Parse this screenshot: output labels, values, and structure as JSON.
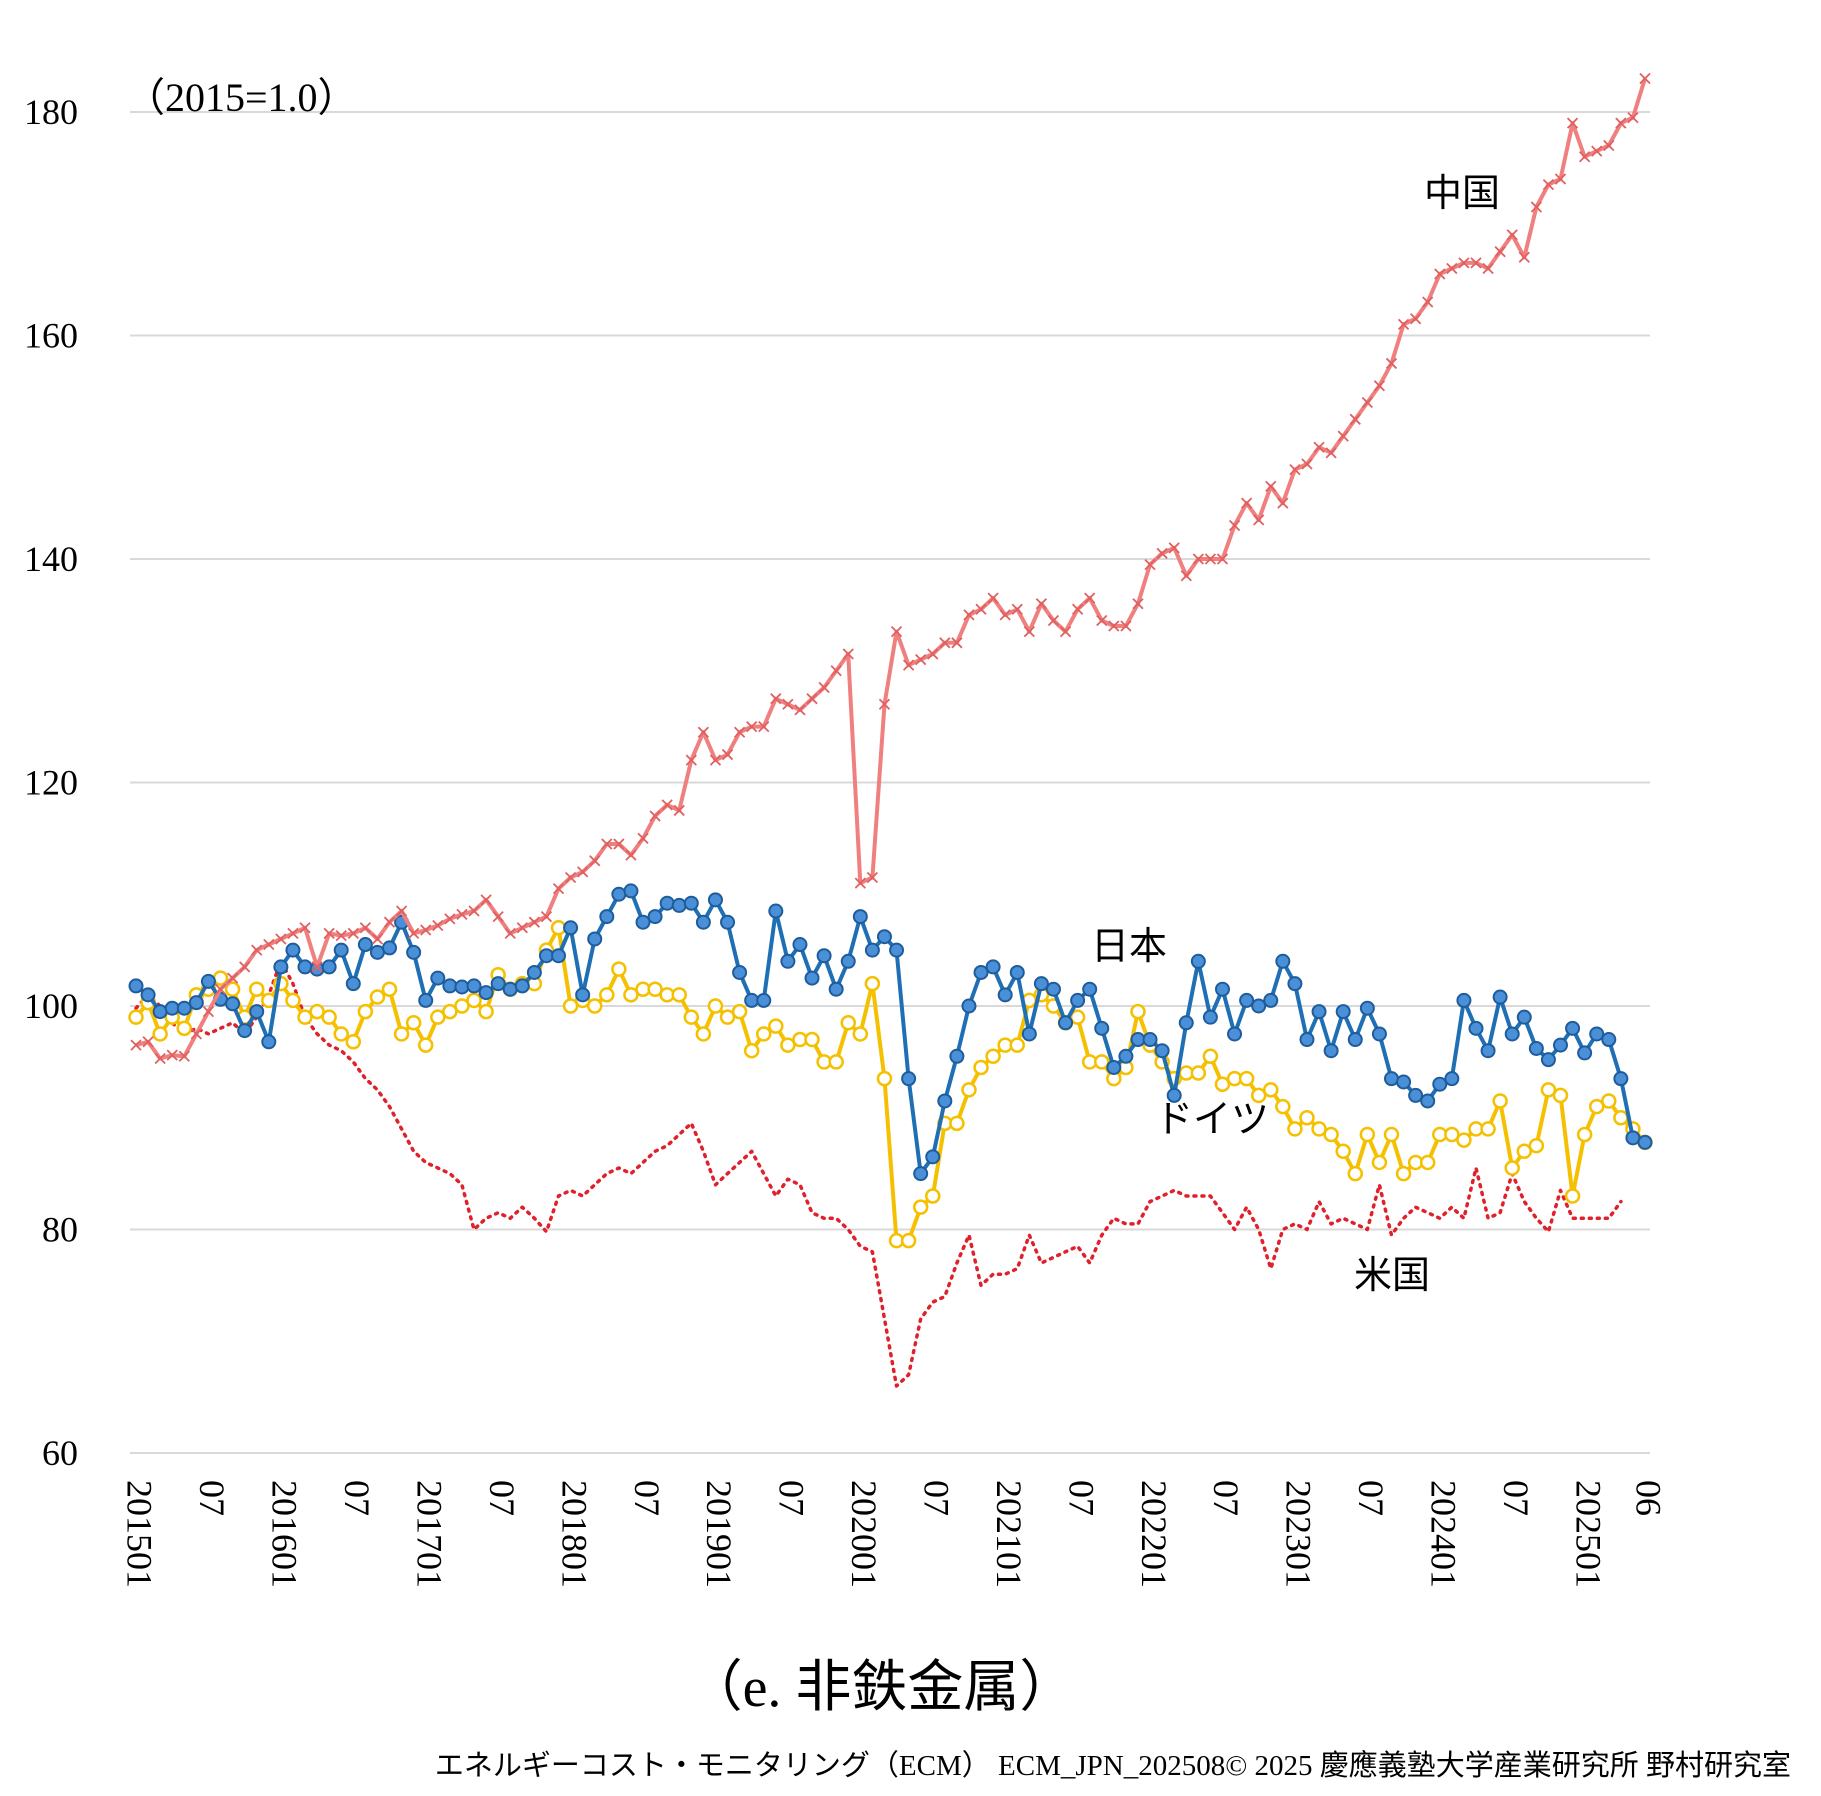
{
  "chart_data": {
    "type": "line",
    "unit_note": "（2015=1.0）",
    "title": "（e. 非鉄金属）",
    "footer": "エネルギーコスト・モニタリング（ECM） ECM_JPN_202508© 2025 慶應義塾大学産業研究所 野村研究室",
    "ylim": [
      60,
      180
    ],
    "yticks": [
      60,
      80,
      100,
      120,
      140,
      160,
      180
    ],
    "grid": true,
    "x_start": "2015-01",
    "x_end": "2025-06",
    "xticks": [
      {
        "month": 0,
        "label": "201501"
      },
      {
        "month": 6,
        "label": "07"
      },
      {
        "month": 12,
        "label": "201601"
      },
      {
        "month": 18,
        "label": "07"
      },
      {
        "month": 24,
        "label": "201701"
      },
      {
        "month": 30,
        "label": "07"
      },
      {
        "month": 36,
        "label": "201801"
      },
      {
        "month": 42,
        "label": "07"
      },
      {
        "month": 48,
        "label": "201901"
      },
      {
        "month": 54,
        "label": "07"
      },
      {
        "month": 60,
        "label": "202001"
      },
      {
        "month": 66,
        "label": "07"
      },
      {
        "month": 72,
        "label": "202101"
      },
      {
        "month": 78,
        "label": "07"
      },
      {
        "month": 84,
        "label": "202201"
      },
      {
        "month": 90,
        "label": "07"
      },
      {
        "month": 96,
        "label": "202301"
      },
      {
        "month": 102,
        "label": "07"
      },
      {
        "month": 108,
        "label": "202401"
      },
      {
        "month": 114,
        "label": "07"
      },
      {
        "month": 120,
        "label": "202501"
      },
      {
        "month": 125,
        "label": "06"
      }
    ],
    "series": [
      {
        "name": "中国",
        "color": "#f08080",
        "marker": "x",
        "style": "solid",
        "values": [
          96.5,
          96.8,
          95.3,
          95.6,
          95.5,
          97.5,
          99.5,
          101.5,
          102.5,
          103.5,
          105,
          105.5,
          106,
          106.5,
          107,
          103.5,
          106.5,
          106.3,
          106.5,
          107,
          106,
          107.5,
          108.5,
          106.5,
          106.8,
          107.2,
          107.8,
          108.2,
          108.5,
          109.5,
          108,
          106.5,
          107,
          107.5,
          108,
          110.5,
          111.5,
          112,
          113,
          114.5,
          114.5,
          113.5,
          115,
          117,
          118,
          117.5,
          122,
          124.5,
          122,
          122.5,
          124.5,
          125,
          125,
          127.5,
          127,
          126.5,
          127.5,
          128.5,
          130,
          131.5,
          111,
          111.5,
          127,
          133.5,
          130.5,
          131,
          131.5,
          132.5,
          132.5,
          135,
          135.5,
          136.5,
          135,
          135.5,
          133.5,
          136,
          134.5,
          133.5,
          135.5,
          136.5,
          134.5,
          134,
          134,
          136,
          139.5,
          140.5,
          141,
          138.5,
          140,
          140,
          140,
          143,
          145,
          143.5,
          146.5,
          145,
          148,
          148.5,
          150,
          149.5,
          151,
          152.5,
          154,
          155.5,
          157.5,
          161,
          161.5,
          163,
          165.5,
          166,
          166.5,
          166.5,
          166,
          167.5,
          169,
          167,
          171.5,
          173.5,
          174,
          179,
          176,
          176.5,
          177,
          179,
          179.5,
          183
        ]
      },
      {
        "name": "日本",
        "color": "#1f6fb5",
        "marker": "filled",
        "style": "solid",
        "values": [
          101.8,
          101,
          99.5,
          99.8,
          99.8,
          100.3,
          102.2,
          100.6,
          100.2,
          97.8,
          99.5,
          96.8,
          103.5,
          105,
          103.5,
          103.3,
          103.5,
          105,
          102,
          105.5,
          104.8,
          105.2,
          107.5,
          104.8,
          100.5,
          102.5,
          101.8,
          101.7,
          101.8,
          101.2,
          102,
          101.5,
          101.8,
          103,
          104.5,
          104.5,
          107,
          101,
          106,
          108,
          110,
          110.3,
          107.5,
          108,
          109.2,
          109,
          109.2,
          107.5,
          109.5,
          107.5,
          103,
          100.5,
          100.5,
          108.5,
          104,
          105.5,
          102.5,
          104.5,
          101.5,
          104,
          108,
          105,
          106.2,
          105,
          93.5,
          85,
          86.5,
          91.5,
          95.5,
          100,
          103,
          103.5,
          101,
          103,
          97.5,
          102,
          101.5,
          98.5,
          100.5,
          101.5,
          98,
          94.5,
          95.5,
          97,
          97,
          96,
          92,
          98.5,
          104,
          99,
          101.5,
          97.5,
          100.5,
          100,
          100.5,
          104,
          102,
          97,
          99.5,
          96,
          99.5,
          97,
          99.8,
          97.5,
          93.5,
          93.2,
          92,
          91.5,
          93,
          93.5,
          100.5,
          98,
          96,
          100.8,
          97.5,
          99,
          96.2,
          95.2,
          96.5,
          98,
          95.8,
          97.5,
          97,
          93.5,
          88.2,
          87.8
        ]
      },
      {
        "name": "ドイツ",
        "color": "#f5c000",
        "marker": "hollow",
        "style": "solid",
        "values": [
          99,
          100.3,
          97.5,
          99,
          98,
          101,
          101.5,
          102.5,
          101.5,
          99,
          101.5,
          100.5,
          102,
          100.5,
          99,
          99.5,
          99,
          97.5,
          96.8,
          99.5,
          100.8,
          101.5,
          97.5,
          98.5,
          96.5,
          99,
          99.5,
          100,
          100.5,
          99.5,
          102.8,
          101.5,
          102,
          102,
          105,
          107,
          100,
          100.5,
          100,
          101,
          103.3,
          101,
          101.5,
          101.5,
          101,
          101,
          99,
          97.5,
          100,
          99,
          99.5,
          96,
          97.5,
          98.2,
          96.5,
          97,
          97,
          95,
          95,
          98.5,
          97.5,
          102,
          93.5,
          79,
          79,
          82,
          83,
          89.5,
          89.5,
          92.5,
          94.5,
          95.5,
          96.5,
          96.5,
          100.5,
          101,
          100,
          98.5,
          99,
          95,
          95,
          93.5,
          94.5,
          99.5,
          96.5,
          95,
          93.5,
          94,
          94,
          95.5,
          93,
          93.5,
          93.5,
          92,
          92.5,
          91,
          89,
          90,
          89,
          88.5,
          87,
          85,
          88.5,
          86,
          88.5,
          85,
          86,
          86,
          88.5,
          88.5,
          88,
          89,
          89,
          91.5,
          85.5,
          87,
          87.5,
          92.5,
          92,
          83,
          88.5,
          91,
          91.5,
          90,
          89,
          87.8
        ]
      },
      {
        "name": "米国",
        "color": "#e0202a",
        "marker": "none",
        "style": "dotted",
        "values": [
          99.8,
          101,
          100,
          98.5,
          97.5,
          98,
          97.5,
          98,
          98.5,
          97.5,
          99,
          101,
          104,
          102,
          99,
          97.5,
          96.5,
          96,
          95,
          93.5,
          92.5,
          91,
          89,
          87,
          86,
          85.5,
          85,
          84,
          80,
          81,
          81.5,
          81,
          82,
          81,
          79.8,
          83,
          83.5,
          83,
          84,
          85,
          85.5,
          85,
          86,
          87,
          87.5,
          88.5,
          89.5,
          87,
          84,
          85,
          86,
          87,
          85,
          83,
          84.5,
          84,
          81.5,
          81,
          81,
          80,
          78.5,
          78,
          72,
          66,
          67,
          72,
          73.5,
          74,
          77,
          79.5,
          75,
          76,
          76,
          76.5,
          79.5,
          77,
          77.5,
          78,
          78.5,
          77,
          79.5,
          81,
          80.5,
          80.5,
          82.5,
          83,
          83.5,
          83,
          83,
          83,
          81.5,
          80,
          82,
          80,
          76.5,
          80,
          80.5,
          80,
          82.5,
          80.5,
          81,
          80.5,
          80,
          84,
          79.5,
          81,
          82,
          81.5,
          81,
          82,
          81,
          85.5,
          81,
          81.5,
          85,
          82.5,
          81,
          79.8,
          83.5,
          81,
          81,
          81,
          81,
          82.5
        ]
      }
    ],
    "labels": {
      "中国": "中国",
      "日本": "日本",
      "ドイツ": "ドイツ",
      "米国": "米国"
    }
  }
}
